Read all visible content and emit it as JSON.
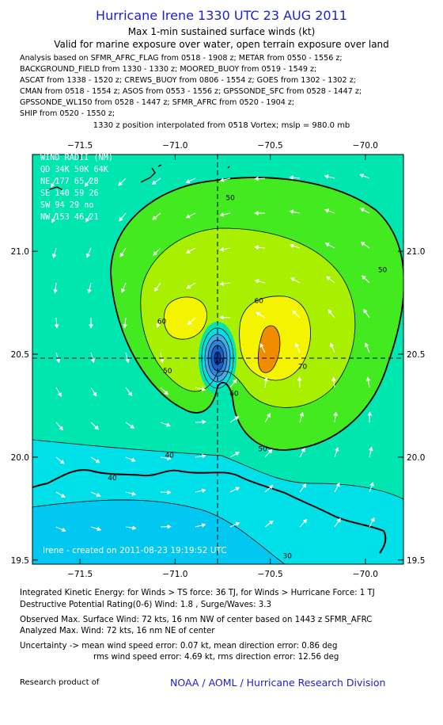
{
  "header": {
    "title": "Hurricane Irene 1330 UTC 23 AUG 2011",
    "subtitle": "Max 1-min sustained surface winds (kt)",
    "subtitle2": "Valid for marine exposure over water, open terrain exposure over land",
    "sources": [
      "Analysis based on SFMR_AFRC_FLAG from 0518 - 1908 z; METAR from 0550 - 1556 z;",
      "BACKGROUND_FIELD from 1330 - 1330 z; MOORED_BUOY from 0519 - 1549 z;",
      "ASCAT from 1338 - 1520 z; CREWS_BUOY from 0806 - 1554 z; GOES from 1302 - 1302 z;",
      "CMAN from 0518 - 1554 z; ASOS from 0553 - 1556 z; GPSSONDE_SFC from 0528 - 1447 z;",
      "GPSSONDE_WL150 from 0528 - 1447 z; SFMR_AFRC from 0520 - 1904 z;",
      "SHIP from 0520 - 1550 z;"
    ],
    "position_note": "1330 z position interpolated from 0518 Vortex; mslp = 980.0 mb"
  },
  "wind_radii": {
    "title": "WIND RADII (NM)",
    "header": [
      "QD",
      "34K",
      "50K",
      "64K"
    ],
    "rows": [
      [
        "NE",
        "177",
        "65",
        "28"
      ],
      [
        "SE",
        "140",
        "59",
        "26"
      ],
      [
        "SW",
        "94",
        "29",
        "no"
      ],
      [
        "NW",
        "153",
        "46",
        "21"
      ]
    ]
  },
  "map_credit": "Irene - created on 2011-08-23 19:19:52 UTC",
  "footer": {
    "ike": "Integrated Kinetic Energy:  for Winds > TS force: 36 TJ,  for Winds > Hurricane Force: 1 TJ",
    "dpr": "Destructive Potential Rating(0-6)   Wind: 1.8 , Surge/Waves: 3.3",
    "observed": "Observed Max. Surface Wind: 72 kts, 16 nm NW of center based on 1443 z SFMR_AFRC",
    "analyzed": "Analyzed Max. Wind: 72 kts, 16 nm NE of center",
    "uncertainty1": "Uncertainty -> mean wind speed error: 0.07 kt,   mean direction error: 0.86 deg",
    "uncertainty2": "rms wind speed error: 4.69 kt,  rms direction error: 12.56 deg",
    "research_label": "Research product of",
    "research_org": "NOAA / AOML / Hurricane Research Division"
  },
  "chart_data": {
    "type": "heatmap",
    "variable": "Max 1-min sustained surface winds (kt)",
    "x_axis": {
      "ticks": [
        -71.5,
        -71.0,
        -70.5,
        -70.0
      ],
      "tick_labels": [
        "−71.5",
        "−71.0",
        "−70.5",
        "−70.0"
      ],
      "range": [
        -71.75,
        -69.8
      ]
    },
    "y_axis": {
      "ticks": [
        19.5,
        20.0,
        20.5,
        21.0
      ],
      "tick_labels": [
        "19.5",
        "20.0",
        "20.5",
        "21.0"
      ],
      "range": [
        19.48,
        21.47
      ]
    },
    "center": {
      "lon": -70.8,
      "lat": 20.47
    },
    "contour_labels": [
      {
        "text": "50",
        "lon": -70.71,
        "lat": 21.26
      },
      {
        "text": "50",
        "lon": -69.91,
        "lat": 20.91
      },
      {
        "text": "50",
        "lon": -70.54,
        "lat": 20.04
      },
      {
        "text": "50",
        "lon": -71.04,
        "lat": 20.42
      },
      {
        "text": "60",
        "lon": -70.56,
        "lat": 20.76
      },
      {
        "text": "60",
        "lon": -71.07,
        "lat": 20.66
      },
      {
        "text": "60",
        "lon": -70.69,
        "lat": 20.31
      },
      {
        "text": "70",
        "lon": -70.33,
        "lat": 20.44
      },
      {
        "text": "40",
        "lon": -71.03,
        "lat": 20.01
      },
      {
        "text": "40",
        "lon": -71.33,
        "lat": 19.9
      },
      {
        "text": "30",
        "lon": -70.41,
        "lat": 19.52
      },
      {
        "text": "10",
        "lon": -70.77,
        "lat": 20.47
      }
    ],
    "colors": {
      "c20": "#00c8f0",
      "c30": "#00e0e8",
      "c40": "#00e6b0",
      "c50": "#44ea20",
      "c60": "#a8f000",
      "c70": "#f4f400",
      "c80": "#f08c00",
      "eye0": "#0c3aa8",
      "eye1": "#1860c8",
      "eye2": "#2e86da",
      "eye3": "#4aa8e6",
      "axis_title": "#1d1dd6"
    }
  }
}
